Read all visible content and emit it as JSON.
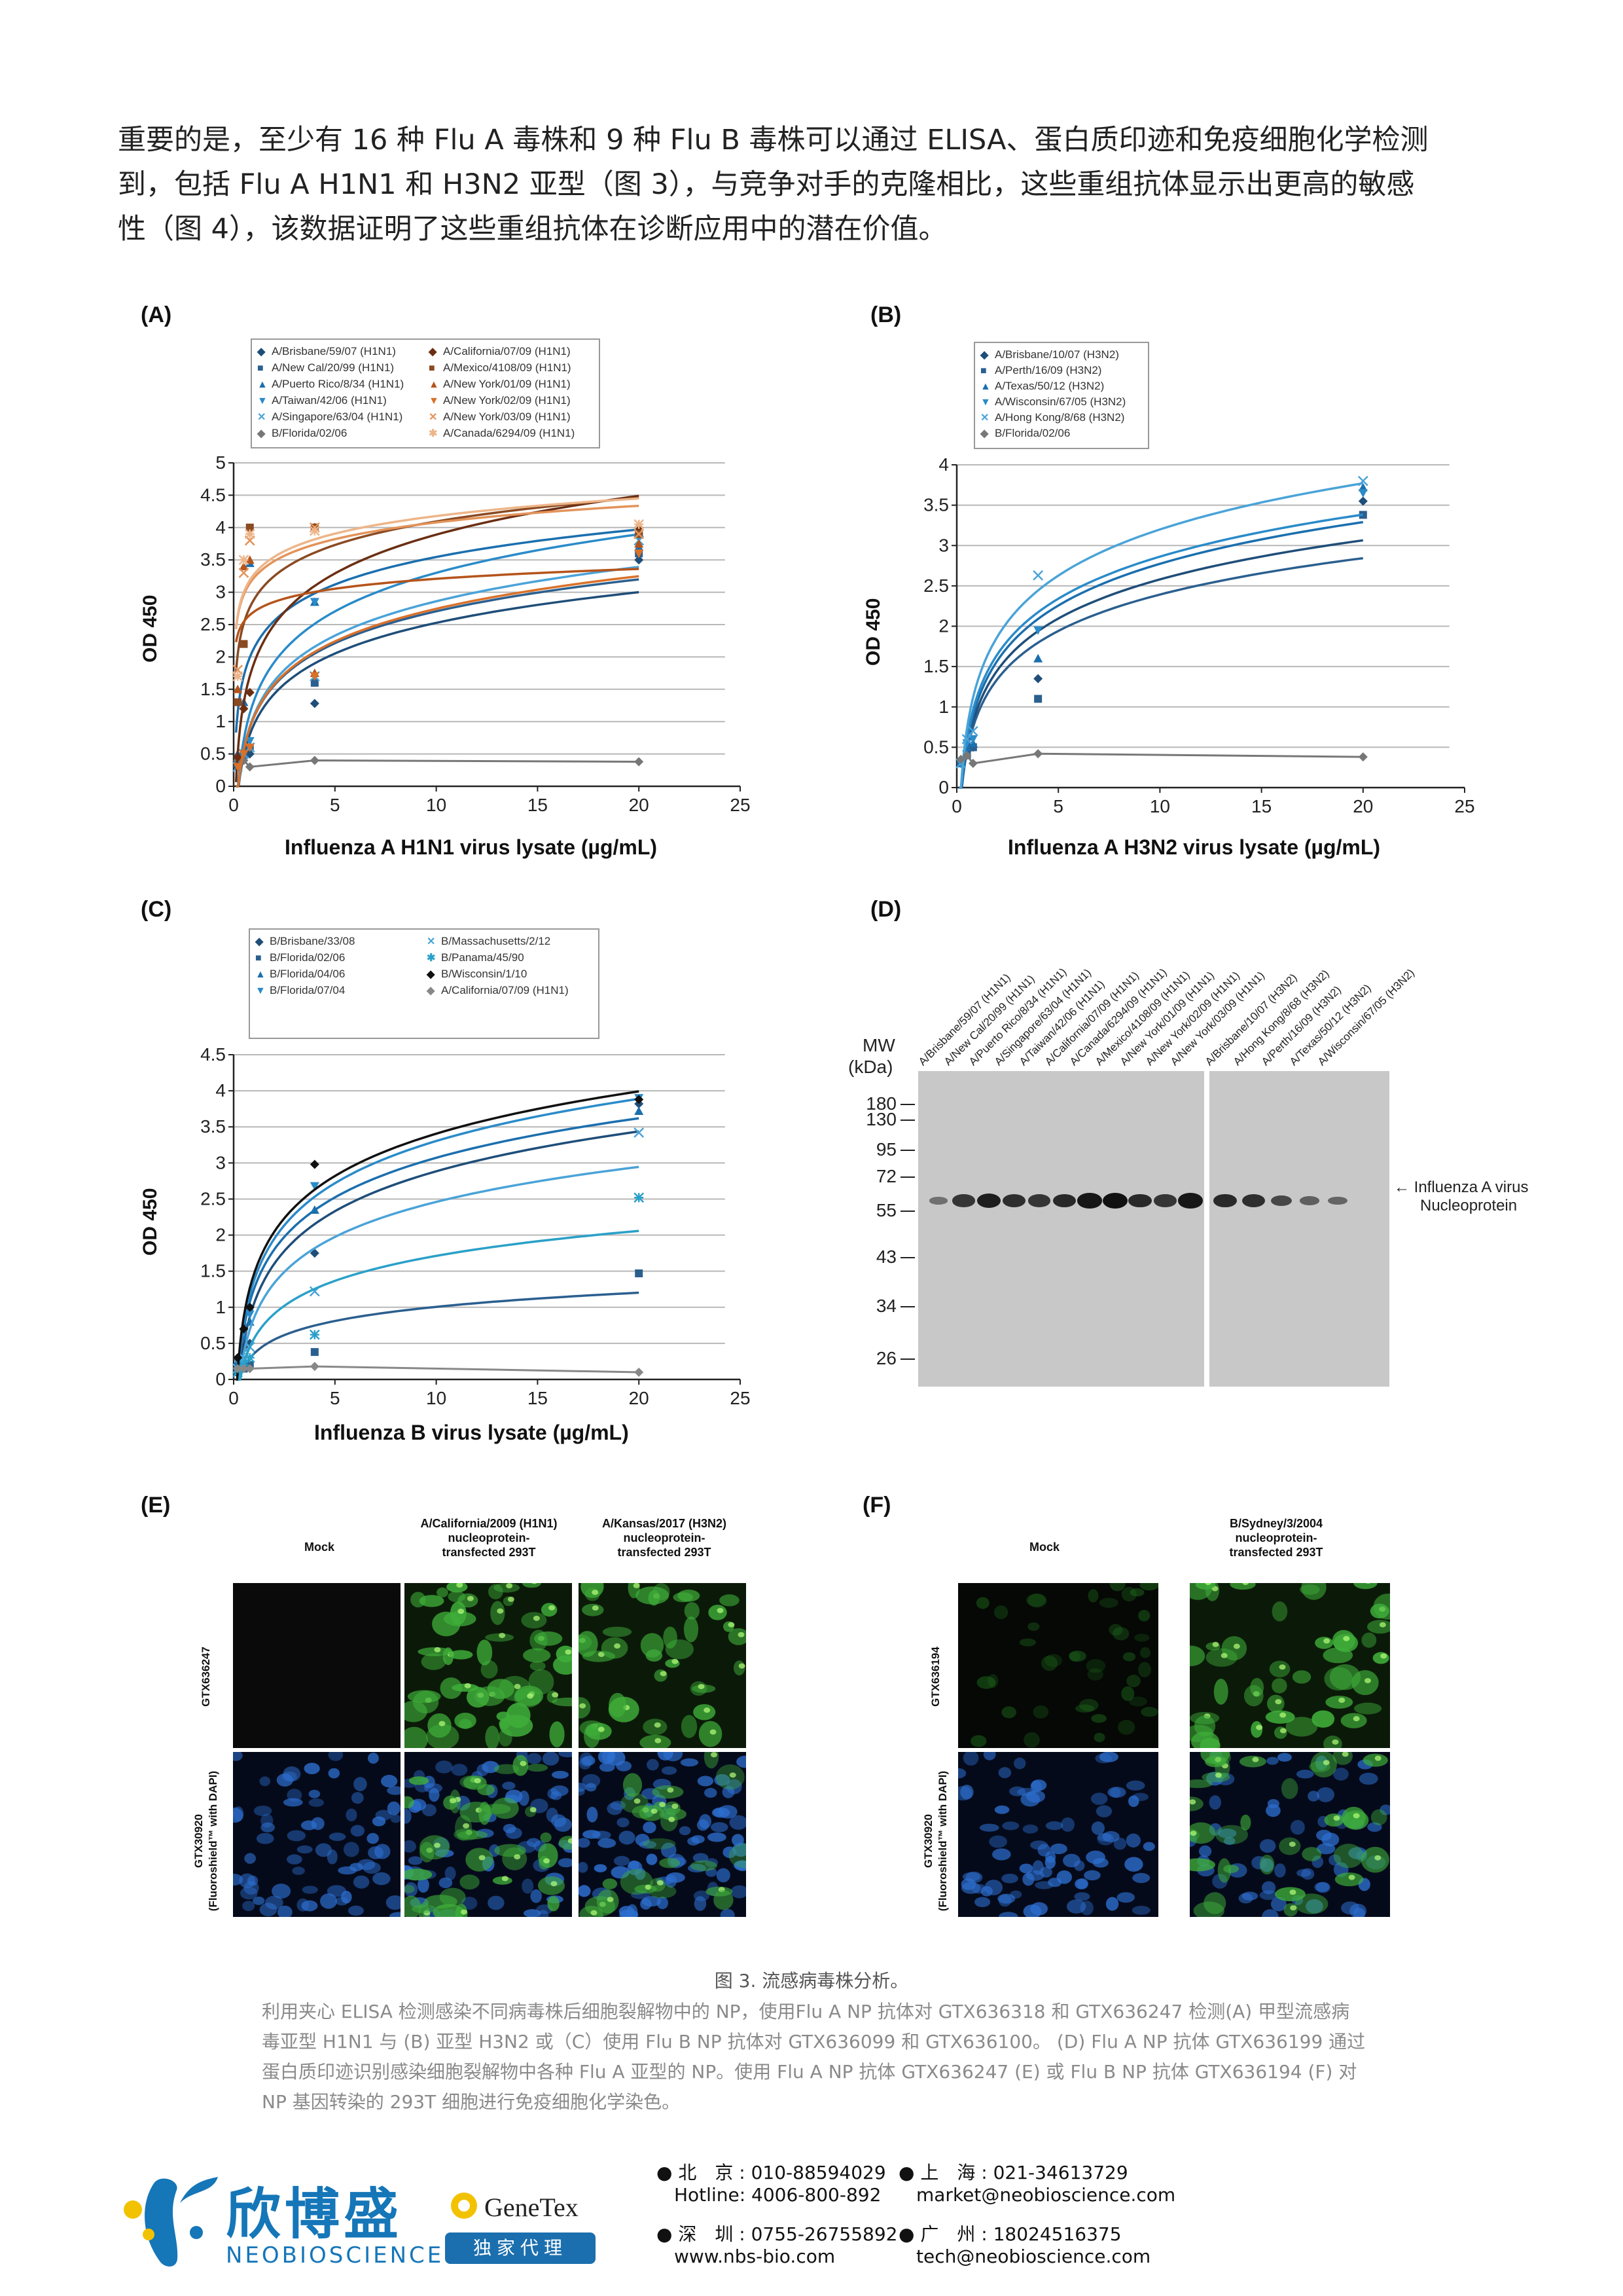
{
  "intro": {
    "line1": "重要的是，至少有 16 种 Flu A 毒株和 9 种 Flu B 毒株可以通过 ELISA、蛋白质印迹和免疫细胞化学检测",
    "line2": "到，包括 Flu A H1N1 和 H3N2 亚型（图 3），与竞争对手的克隆相比，这些重组抗体显示出更高的敏感",
    "line3": "性（图 4），该数据证明了这些重组抗体在诊断应用中的潜在价值。"
  },
  "panels": {
    "a": "(A)",
    "b": "(B)",
    "c": "(C)",
    "d": "(D)",
    "e": "(E)",
    "f": "(F)"
  },
  "chart_data": [
    {
      "type": "scatter",
      "panel": "(A)",
      "xlabel": "Influenza A H1N1 virus lysate (µg/mL)",
      "ylabel": "OD 450",
      "xlim": [
        0,
        25
      ],
      "ylim": [
        0,
        5
      ],
      "xticks": [
        "0",
        "5",
        "10",
        "15",
        "20",
        "25"
      ],
      "yticks": [
        "0",
        "0.5",
        "1",
        "1.5",
        "2",
        "2.5",
        "3",
        "3.5",
        "4",
        "4.5",
        "5"
      ],
      "grid": true,
      "legend_position": "top",
      "x": [
        0.2,
        0.5,
        0.8,
        4,
        20
      ],
      "series": [
        {
          "name": "A/Brisbane/59/07 (H1N1)",
          "marker": "diamond",
          "color": "#1f4e79",
          "values": [
            0.3,
            0.45,
            0.5,
            1.28,
            3.5
          ]
        },
        {
          "name": "A/New Cal/20/99 (H1N1)",
          "marker": "square",
          "color": "#2b5f8f",
          "values": [
            0.35,
            0.5,
            0.6,
            1.6,
            3.6
          ]
        },
        {
          "name": "A/Puerto Rico/8/34 (H1N1)",
          "marker": "triangle-up",
          "color": "#1b6fae",
          "values": [
            0.5,
            1.3,
            3.45,
            2.85,
            3.7
          ]
        },
        {
          "name": "A/Taiwan/42/06 (H1N1)",
          "marker": "triangle-down",
          "color": "#2a8bc9",
          "values": [
            0.3,
            0.5,
            0.7,
            2.85,
            3.85
          ]
        },
        {
          "name": "A/Singapore/63/04 (H1N1)",
          "marker": "x",
          "color": "#4aa3d8",
          "values": [
            0.3,
            0.5,
            0.6,
            1.7,
            3.8
          ]
        },
        {
          "name": "B/Florida/02/06",
          "marker": "diamond",
          "color": "#777777",
          "values": [
            0.4,
            0.4,
            0.3,
            0.4,
            0.38
          ]
        },
        {
          "name": "A/California/07/09 (H1N1)",
          "marker": "diamond",
          "color": "#6b2e12",
          "values": [
            0.45,
            1.2,
            1.45,
            4.0,
            4.0
          ]
        },
        {
          "name": "A/Mexico/4108/09 (H1N1)",
          "marker": "square",
          "color": "#8a4a22",
          "values": [
            1.3,
            2.2,
            4.0,
            4.0,
            3.9
          ]
        },
        {
          "name": "A/New York/01/09 (H1N1)",
          "marker": "triangle-up",
          "color": "#b5541b",
          "values": [
            1.5,
            3.4,
            3.5,
            1.75,
            3.75
          ]
        },
        {
          "name": "A/New York/02/09 (H1N1)",
          "marker": "triangle-down",
          "color": "#d9712a",
          "values": [
            0.3,
            0.5,
            0.6,
            1.7,
            3.6
          ]
        },
        {
          "name": "A/New York/03/09 (H1N1)",
          "marker": "x",
          "color": "#e3935a",
          "values": [
            1.8,
            3.3,
            3.8,
            4.0,
            3.9
          ]
        },
        {
          "name": "A/Canada/6294/09 (H1N1)",
          "marker": "asterisk",
          "color": "#edb589",
          "values": [
            1.7,
            3.5,
            3.9,
            3.95,
            4.05
          ]
        }
      ]
    },
    {
      "type": "scatter",
      "panel": "(B)",
      "xlabel": "Influenza A H3N2 virus lysate (µg/mL)",
      "ylabel": "OD 450",
      "xlim": [
        0,
        25
      ],
      "ylim": [
        0,
        4
      ],
      "xticks": [
        "0",
        "5",
        "10",
        "15",
        "20",
        "25"
      ],
      "yticks": [
        "0",
        "0.5",
        "1",
        "1.5",
        "2",
        "2.5",
        "3",
        "3.5",
        "4"
      ],
      "grid": true,
      "legend_position": "top-left",
      "x": [
        0.2,
        0.5,
        0.8,
        4,
        20
      ],
      "series": [
        {
          "name": "A/Brisbane/10/07 (H3N2)",
          "marker": "diamond",
          "color": "#1f4e79",
          "values": [
            0.3,
            0.45,
            0.5,
            1.35,
            3.55
          ]
        },
        {
          "name": "A/Perth/16/09 (H3N2)",
          "marker": "square",
          "color": "#2b5f8f",
          "values": [
            0.3,
            0.4,
            0.5,
            1.1,
            3.38
          ]
        },
        {
          "name": "A/Texas/50/12 (H3N2)",
          "marker": "triangle-up",
          "color": "#1b6fae",
          "values": [
            0.3,
            0.5,
            0.55,
            1.6,
            3.72
          ]
        },
        {
          "name": "A/Wisconsin/67/05 (H3N2)",
          "marker": "triangle-down",
          "color": "#2a8bc9",
          "values": [
            0.3,
            0.55,
            0.6,
            1.95,
            3.65
          ]
        },
        {
          "name": "A/Hong Kong/8/68 (H3N2)",
          "marker": "x",
          "color": "#4aa3d8",
          "values": [
            0.3,
            0.6,
            0.7,
            2.63,
            3.8
          ]
        },
        {
          "name": "B/Florida/02/06",
          "marker": "diamond",
          "color": "#777777",
          "values": [
            0.35,
            0.4,
            0.3,
            0.42,
            0.38
          ]
        }
      ]
    },
    {
      "type": "scatter",
      "panel": "(C)",
      "xlabel": "Influenza B virus lysate (µg/mL)",
      "ylabel": "OD 450",
      "xlim": [
        0,
        25
      ],
      "ylim": [
        0,
        4.5
      ],
      "xticks": [
        "0",
        "5",
        "10",
        "15",
        "20",
        "25"
      ],
      "yticks": [
        "0",
        "0.5",
        "1",
        "1.5",
        "2",
        "2.5",
        "3",
        "3.5",
        "4",
        "4.5"
      ],
      "grid": true,
      "legend_position": "top",
      "x": [
        0.2,
        0.5,
        0.8,
        4,
        20
      ],
      "series": [
        {
          "name": "B/Brisbane/33/08",
          "marker": "diamond",
          "color": "#1f4e79",
          "values": [
            0.2,
            0.45,
            0.5,
            1.75,
            3.82
          ]
        },
        {
          "name": "B/Florida/02/06",
          "marker": "square",
          "color": "#2b5f8f",
          "values": [
            0.1,
            0.15,
            0.2,
            0.38,
            1.47
          ]
        },
        {
          "name": "B/Florida/04/06",
          "marker": "triangle-up",
          "color": "#1b6fae",
          "values": [
            0.25,
            0.6,
            0.8,
            2.35,
            3.72
          ]
        },
        {
          "name": "B/Florida/07/04",
          "marker": "triangle-down",
          "color": "#2a8bc9",
          "values": [
            0.25,
            0.65,
            0.9,
            2.68,
            3.9
          ]
        },
        {
          "name": "B/Massachusetts/2/12",
          "marker": "x",
          "color": "#4aa3d8",
          "values": [
            0.15,
            0.3,
            0.45,
            1.22,
            3.42
          ]
        },
        {
          "name": "B/Panama/45/90",
          "marker": "asterisk",
          "color": "#2aa0c8",
          "values": [
            0.1,
            0.2,
            0.3,
            0.62,
            2.52
          ]
        },
        {
          "name": "B/Wisconsin/1/10",
          "marker": "diamond",
          "color": "#111111",
          "values": [
            0.3,
            0.7,
            1.0,
            2.98,
            3.88
          ]
        },
        {
          "name": "A/California/07/09 (H1N1)",
          "marker": "diamond",
          "color": "#888888",
          "values": [
            0.15,
            0.15,
            0.15,
            0.18,
            0.1
          ]
        }
      ]
    }
  ],
  "western": {
    "mw_label": "MW",
    "kda_label": "(kDa)",
    "markers": [
      "180",
      "130",
      "95",
      "72",
      "55",
      "43",
      "34",
      "26"
    ],
    "lanes": [
      "A/Brisbane/59/07 (H1N1)",
      "A/New Cal/20/99 (H1N1)",
      "A/Puerto Rico/8/34 (H1N1)",
      "A/Singapore/63/04 (H1N1)",
      "A/Taiwan/42/06 (H1N1)",
      "A/California/07/09 (H1N1)",
      "A/Canada/6294/09 (H1N1)",
      "A/Mexico/4108/09 (H1N1)",
      "A/New York/01/09 (H1N1)",
      "A/New York/02/09 (H1N1)",
      "A/New York/03/09 (H1N1)",
      "A/Brisbane/10/07 (H3N2)",
      "A/Hong Kong/8/68 (H3N2)",
      "A/Perth/16/09 (H3N2)",
      "A/Texas/50/12 (H3N2)",
      "A/Wisconsin/67/05 (H3N2)"
    ],
    "band_intensity": [
      0.2,
      0.7,
      0.9,
      0.75,
      0.7,
      0.8,
      0.95,
      1.0,
      0.8,
      0.7,
      0.95,
      0.8,
      0.75,
      0.55,
      0.35,
      0.3
    ],
    "annotation_line1": "← Influenza A virus",
    "annotation_line2": "Nucleoprotein"
  },
  "if_e": {
    "col_mock": "Mock",
    "col2_line1": "A/California/2009 (H1N1)",
    "col2_line2": "nucleoprotein-",
    "col2_line3": "transfected 293T",
    "col3_line1": "A/Kansas/2017 (H3N2)",
    "col3_line2": "nucleoprotein-",
    "col3_line3": "transfected 293T",
    "row1": "GTX636247",
    "row2_line1": "GTX30920",
    "row2_line2": "(Fluoroshield™ with DAPI)"
  },
  "if_f": {
    "col_mock": "Mock",
    "col2_line1": "B/Sydney/3/2004",
    "col2_line2": "nucleoprotein-",
    "col2_line3": "transfected 293T",
    "row1": "GTX636194",
    "row2_line1": "GTX30920",
    "row2_line2": "(Fluoroshield™ with DAPI)"
  },
  "caption": {
    "title": "图 3. 流感病毒株分析。",
    "line1": "利用夹心 ELISA 检测感染不同病毒株后细胞裂解物中的 NP，使用Flu A NP 抗体对 GTX636318 和 GTX636247 检测(A) 甲型流感病",
    "line2": "毒亚型 H1N1 与 (B) 亚型 H3N2 或（C）使用 Flu B NP 抗体对 GTX636099 和 GTX636100。 (D) Flu A NP 抗体 GTX636199   通过",
    "line3": "蛋白质印迹识别感染细胞裂解物中各种 Flu A 亚型的 NP。使用 Flu A NP 抗体 GTX636247 (E) 或 Flu B NP 抗体 GTX636194 (F) 对",
    "line4": "NP 基因转染的 293T 细胞进行免疫细胞化学染色。"
  },
  "footer": {
    "brand_cn": "欣博盛",
    "brand_en": "NEOBIOSCIENCE",
    "genetex": "GeneTex",
    "agent": "独家代理",
    "beijing": "北　京 : 010-88594029",
    "hotline": "Hotline: 4006-800-892",
    "shenzhen": "深　圳 : 0755-26755892",
    "web": "www.nbs-bio.com",
    "shanghai": "上　海 : 021-34613729",
    "market": "market@neobioscience.com",
    "guangzhou": "广　州 : 18024516375",
    "tech": "tech@neobioscience.com",
    "colors": {
      "brand_blue": "#1576b8",
      "accent_yellow": "#f2c200"
    }
  }
}
